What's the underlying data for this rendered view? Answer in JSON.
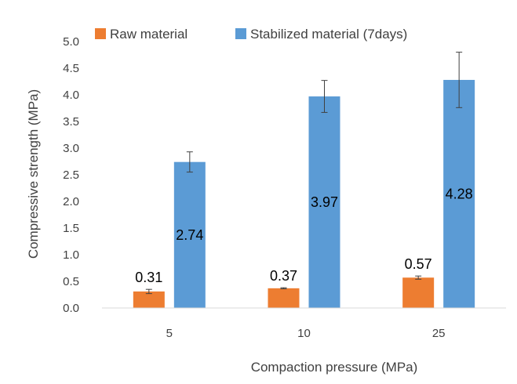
{
  "chart_data": {
    "type": "bar",
    "title": "",
    "xlabel": "Compaction pressure (MPa)",
    "ylabel": "Compressive strength (MPa)",
    "categories": [
      "5",
      "10",
      "25"
    ],
    "ylim": [
      0,
      5
    ],
    "yticks": [
      "0.0",
      "0.5",
      "1.0",
      "1.5",
      "2.0",
      "2.5",
      "3.0",
      "3.5",
      "4.0",
      "4.5",
      "5.0"
    ],
    "grid": false,
    "legend_position": "top",
    "series": [
      {
        "name": "Raw material",
        "color": "#ED7D31",
        "values": [
          0.31,
          0.37,
          0.57
        ],
        "labels": [
          "0.31",
          "0.37",
          "0.57"
        ],
        "error": [
          0.04,
          0.01,
          0.03
        ]
      },
      {
        "name": "Stabilized material (7days)",
        "color": "#5B9BD5",
        "values": [
          2.74,
          3.97,
          4.28
        ],
        "labels": [
          "2.74",
          "3.97",
          "4.28"
        ],
        "error": [
          0.19,
          0.3,
          0.52
        ]
      }
    ]
  }
}
